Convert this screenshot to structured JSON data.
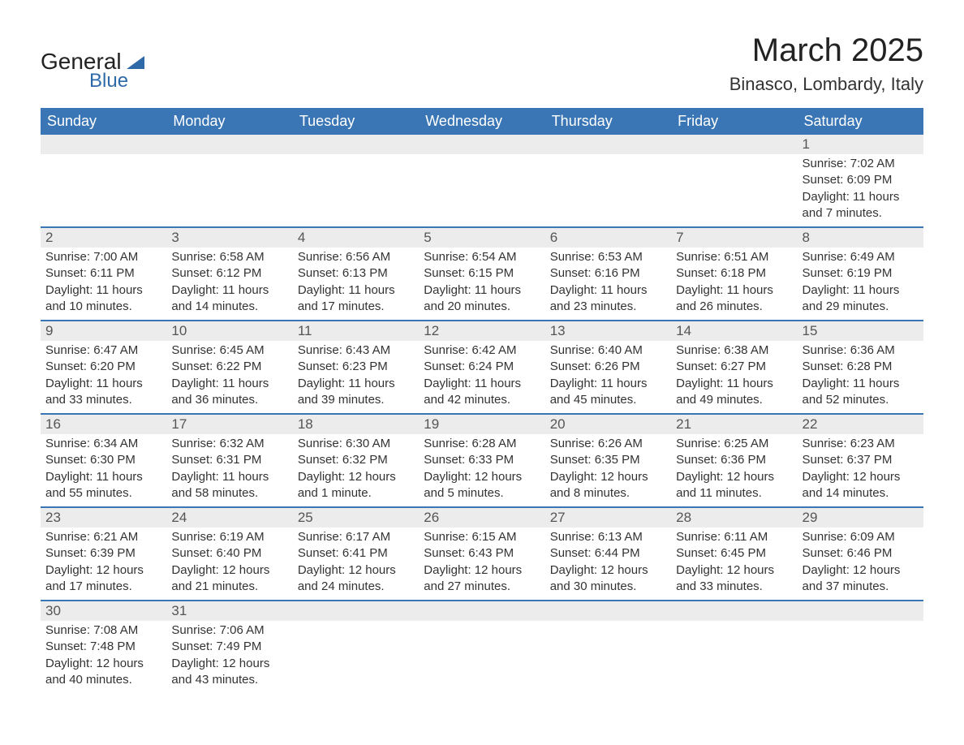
{
  "branding": {
    "logo_word1": "General",
    "logo_word2": "Blue",
    "logo_color": "#2f6aa8"
  },
  "header": {
    "month_title": "March 2025",
    "location": "Binasco, Lombardy, Italy"
  },
  "calendar": {
    "header_bg": "#3a76b5",
    "header_fg": "#ffffff",
    "day_columns": [
      "Sunday",
      "Monday",
      "Tuesday",
      "Wednesday",
      "Thursday",
      "Friday",
      "Saturday"
    ],
    "weeks": [
      [
        null,
        null,
        null,
        null,
        null,
        null,
        {
          "n": "1",
          "sunrise": "Sunrise: 7:02 AM",
          "sunset": "Sunset: 6:09 PM",
          "daylight": "Daylight: 11 hours and 7 minutes."
        }
      ],
      [
        {
          "n": "2",
          "sunrise": "Sunrise: 7:00 AM",
          "sunset": "Sunset: 6:11 PM",
          "daylight": "Daylight: 11 hours and 10 minutes."
        },
        {
          "n": "3",
          "sunrise": "Sunrise: 6:58 AM",
          "sunset": "Sunset: 6:12 PM",
          "daylight": "Daylight: 11 hours and 14 minutes."
        },
        {
          "n": "4",
          "sunrise": "Sunrise: 6:56 AM",
          "sunset": "Sunset: 6:13 PM",
          "daylight": "Daylight: 11 hours and 17 minutes."
        },
        {
          "n": "5",
          "sunrise": "Sunrise: 6:54 AM",
          "sunset": "Sunset: 6:15 PM",
          "daylight": "Daylight: 11 hours and 20 minutes."
        },
        {
          "n": "6",
          "sunrise": "Sunrise: 6:53 AM",
          "sunset": "Sunset: 6:16 PM",
          "daylight": "Daylight: 11 hours and 23 minutes."
        },
        {
          "n": "7",
          "sunrise": "Sunrise: 6:51 AM",
          "sunset": "Sunset: 6:18 PM",
          "daylight": "Daylight: 11 hours and 26 minutes."
        },
        {
          "n": "8",
          "sunrise": "Sunrise: 6:49 AM",
          "sunset": "Sunset: 6:19 PM",
          "daylight": "Daylight: 11 hours and 29 minutes."
        }
      ],
      [
        {
          "n": "9",
          "sunrise": "Sunrise: 6:47 AM",
          "sunset": "Sunset: 6:20 PM",
          "daylight": "Daylight: 11 hours and 33 minutes."
        },
        {
          "n": "10",
          "sunrise": "Sunrise: 6:45 AM",
          "sunset": "Sunset: 6:22 PM",
          "daylight": "Daylight: 11 hours and 36 minutes."
        },
        {
          "n": "11",
          "sunrise": "Sunrise: 6:43 AM",
          "sunset": "Sunset: 6:23 PM",
          "daylight": "Daylight: 11 hours and 39 minutes."
        },
        {
          "n": "12",
          "sunrise": "Sunrise: 6:42 AM",
          "sunset": "Sunset: 6:24 PM",
          "daylight": "Daylight: 11 hours and 42 minutes."
        },
        {
          "n": "13",
          "sunrise": "Sunrise: 6:40 AM",
          "sunset": "Sunset: 6:26 PM",
          "daylight": "Daylight: 11 hours and 45 minutes."
        },
        {
          "n": "14",
          "sunrise": "Sunrise: 6:38 AM",
          "sunset": "Sunset: 6:27 PM",
          "daylight": "Daylight: 11 hours and 49 minutes."
        },
        {
          "n": "15",
          "sunrise": "Sunrise: 6:36 AM",
          "sunset": "Sunset: 6:28 PM",
          "daylight": "Daylight: 11 hours and 52 minutes."
        }
      ],
      [
        {
          "n": "16",
          "sunrise": "Sunrise: 6:34 AM",
          "sunset": "Sunset: 6:30 PM",
          "daylight": "Daylight: 11 hours and 55 minutes."
        },
        {
          "n": "17",
          "sunrise": "Sunrise: 6:32 AM",
          "sunset": "Sunset: 6:31 PM",
          "daylight": "Daylight: 11 hours and 58 minutes."
        },
        {
          "n": "18",
          "sunrise": "Sunrise: 6:30 AM",
          "sunset": "Sunset: 6:32 PM",
          "daylight": "Daylight: 12 hours and 1 minute."
        },
        {
          "n": "19",
          "sunrise": "Sunrise: 6:28 AM",
          "sunset": "Sunset: 6:33 PM",
          "daylight": "Daylight: 12 hours and 5 minutes."
        },
        {
          "n": "20",
          "sunrise": "Sunrise: 6:26 AM",
          "sunset": "Sunset: 6:35 PM",
          "daylight": "Daylight: 12 hours and 8 minutes."
        },
        {
          "n": "21",
          "sunrise": "Sunrise: 6:25 AM",
          "sunset": "Sunset: 6:36 PM",
          "daylight": "Daylight: 12 hours and 11 minutes."
        },
        {
          "n": "22",
          "sunrise": "Sunrise: 6:23 AM",
          "sunset": "Sunset: 6:37 PM",
          "daylight": "Daylight: 12 hours and 14 minutes."
        }
      ],
      [
        {
          "n": "23",
          "sunrise": "Sunrise: 6:21 AM",
          "sunset": "Sunset: 6:39 PM",
          "daylight": "Daylight: 12 hours and 17 minutes."
        },
        {
          "n": "24",
          "sunrise": "Sunrise: 6:19 AM",
          "sunset": "Sunset: 6:40 PM",
          "daylight": "Daylight: 12 hours and 21 minutes."
        },
        {
          "n": "25",
          "sunrise": "Sunrise: 6:17 AM",
          "sunset": "Sunset: 6:41 PM",
          "daylight": "Daylight: 12 hours and 24 minutes."
        },
        {
          "n": "26",
          "sunrise": "Sunrise: 6:15 AM",
          "sunset": "Sunset: 6:43 PM",
          "daylight": "Daylight: 12 hours and 27 minutes."
        },
        {
          "n": "27",
          "sunrise": "Sunrise: 6:13 AM",
          "sunset": "Sunset: 6:44 PM",
          "daylight": "Daylight: 12 hours and 30 minutes."
        },
        {
          "n": "28",
          "sunrise": "Sunrise: 6:11 AM",
          "sunset": "Sunset: 6:45 PM",
          "daylight": "Daylight: 12 hours and 33 minutes."
        },
        {
          "n": "29",
          "sunrise": "Sunrise: 6:09 AM",
          "sunset": "Sunset: 6:46 PM",
          "daylight": "Daylight: 12 hours and 37 minutes."
        }
      ],
      [
        {
          "n": "30",
          "sunrise": "Sunrise: 7:08 AM",
          "sunset": "Sunset: 7:48 PM",
          "daylight": "Daylight: 12 hours and 40 minutes."
        },
        {
          "n": "31",
          "sunrise": "Sunrise: 7:06 AM",
          "sunset": "Sunset: 7:49 PM",
          "daylight": "Daylight: 12 hours and 43 minutes."
        },
        null,
        null,
        null,
        null,
        null
      ]
    ]
  }
}
